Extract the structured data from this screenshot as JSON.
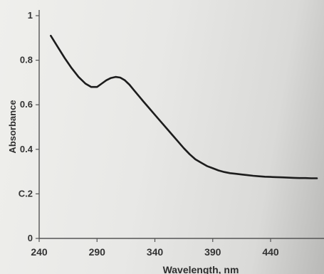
{
  "chart_data": {
    "type": "line",
    "title": "",
    "xlabel": "Wavelength, nm",
    "ylabel": "Absorbance",
    "xlim": [
      240,
      480
    ],
    "ylim": [
      0,
      1
    ],
    "x_ticks": [
      "240",
      "290",
      "340",
      "390",
      "440"
    ],
    "y_ticks": [
      "0",
      "C.2",
      "0.4",
      "0.6",
      "0.8",
      "1"
    ],
    "grid": false,
    "series": [
      {
        "x": [
          250,
          256,
          262,
          268,
          274,
          280,
          285,
          290,
          294,
          298,
          302,
          306,
          310,
          314,
          318,
          322,
          326,
          330,
          335,
          340,
          345,
          350,
          355,
          360,
          365,
          370,
          375,
          380,
          385,
          390,
          395,
          400,
          405,
          410,
          415,
          420,
          425,
          430,
          435,
          440,
          445,
          450,
          455,
          460,
          465,
          470,
          475,
          480
        ],
        "y": [
          0.91,
          0.86,
          0.81,
          0.765,
          0.725,
          0.695,
          0.68,
          0.68,
          0.695,
          0.71,
          0.72,
          0.725,
          0.722,
          0.71,
          0.69,
          0.665,
          0.64,
          0.615,
          0.585,
          0.555,
          0.525,
          0.495,
          0.465,
          0.435,
          0.405,
          0.378,
          0.355,
          0.34,
          0.325,
          0.315,
          0.305,
          0.298,
          0.293,
          0.29,
          0.287,
          0.284,
          0.281,
          0.279,
          0.277,
          0.276,
          0.275,
          0.274,
          0.273,
          0.272,
          0.271,
          0.271,
          0.27,
          0.27
        ]
      }
    ]
  }
}
